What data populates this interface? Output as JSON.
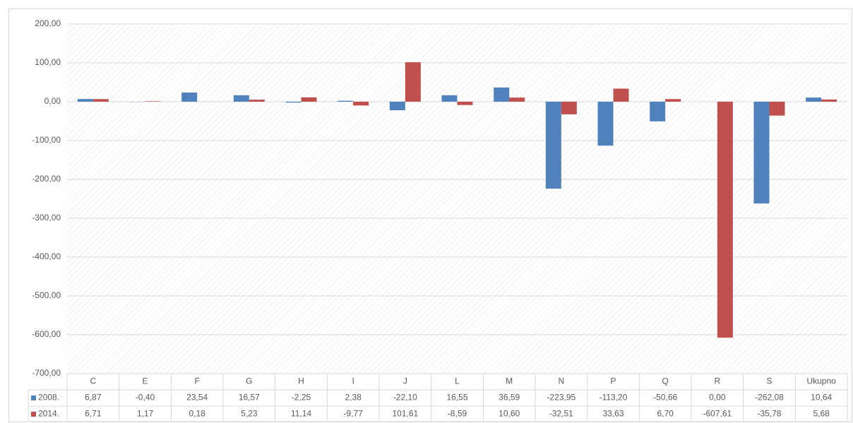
{
  "chart_data": {
    "type": "bar",
    "categories": [
      "C",
      "E",
      "F",
      "G",
      "H",
      "I",
      "J",
      "L",
      "M",
      "N",
      "P",
      "Q",
      "R",
      "S",
      "Ukupno"
    ],
    "series": [
      {
        "name": "2008.",
        "color": "#4f81bd",
        "values": [
          6.87,
          -0.4,
          23.54,
          16.57,
          -2.25,
          2.38,
          -22.1,
          16.55,
          36.59,
          -223.95,
          -113.2,
          -50.66,
          0.0,
          -262.08,
          10.64
        ],
        "value_labels": [
          "6,87",
          "-0,40",
          "23,54",
          "16,57",
          "-2,25",
          "2,38",
          "-22,10",
          "16,55",
          "36,59",
          "-223,95",
          "-113,20",
          "-50,66",
          "0,00",
          "-262,08",
          "10,64"
        ]
      },
      {
        "name": "2014.",
        "color": "#c0504d",
        "values": [
          6.71,
          1.17,
          0.18,
          5.23,
          11.14,
          -9.77,
          101.61,
          -8.59,
          10.6,
          -32.51,
          33.63,
          6.7,
          -607.61,
          -35.78,
          5.68
        ],
        "value_labels": [
          "6,71",
          "1,17",
          "0,18",
          "5,23",
          "11,14",
          "-9,77",
          "101,61",
          "-8,59",
          "10,60",
          "-32,51",
          "33,63",
          "6,70",
          "-607,61",
          "-35,78",
          "5,68"
        ]
      }
    ],
    "ylim": [
      -700,
      200
    ],
    "yticks": [
      {
        "value": -700,
        "label": "-700,00"
      },
      {
        "value": -600,
        "label": "-600,00"
      },
      {
        "value": -500,
        "label": "-500,00"
      },
      {
        "value": -400,
        "label": "-400,00"
      },
      {
        "value": -300,
        "label": "-300,00"
      },
      {
        "value": -200,
        "label": "-200,00"
      },
      {
        "value": -100,
        "label": "-100,00"
      },
      {
        "value": 0,
        "label": "0,00"
      },
      {
        "value": 100,
        "label": "100,00"
      },
      {
        "value": 200,
        "label": "200,00"
      }
    ],
    "grid": true
  }
}
